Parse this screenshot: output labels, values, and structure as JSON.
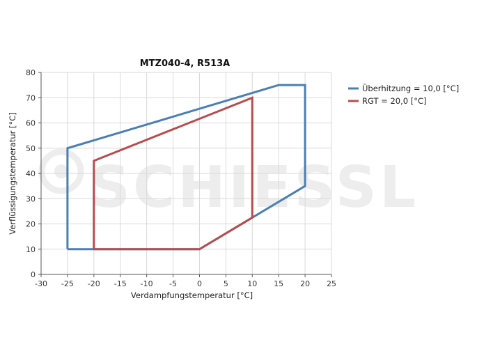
{
  "chart_data": {
    "type": "line",
    "title": "MTZ040-4, R513A",
    "xlabel": "Verdampfungstemperatur [°C]",
    "ylabel": "Verflüssigungstemperatur [°C]",
    "xlim": [
      -30,
      25
    ],
    "ylim": [
      0,
      80
    ],
    "x_ticks": [
      -30,
      -25,
      -20,
      -15,
      -10,
      -5,
      0,
      5,
      10,
      15,
      20,
      25
    ],
    "y_ticks": [
      0,
      10,
      20,
      30,
      40,
      50,
      60,
      70,
      80
    ],
    "grid": true,
    "legend_position": "right",
    "series": [
      {
        "name": "Überhitzung = 10,0 [°C]",
        "color": "#4a7fb5",
        "points": [
          {
            "x": -25,
            "y": 10
          },
          {
            "x": -25,
            "y": 50
          },
          {
            "x": 15,
            "y": 75
          },
          {
            "x": 20,
            "y": 75
          },
          {
            "x": 20,
            "y": 35
          },
          {
            "x": 10,
            "y": 22.5
          },
          {
            "x": 0,
            "y": 10
          },
          {
            "x": -25,
            "y": 10
          }
        ]
      },
      {
        "name": "RGT = 20,0 [°C]",
        "color": "#b84c4c",
        "points": [
          {
            "x": -20,
            "y": 10
          },
          {
            "x": -20,
            "y": 45
          },
          {
            "x": 10,
            "y": 70
          },
          {
            "x": 10,
            "y": 22.5
          },
          {
            "x": 0,
            "y": 10
          },
          {
            "x": -20,
            "y": 10
          }
        ]
      }
    ]
  },
  "watermark": {
    "text": "SCHIESSL",
    "icon": "schiessl-logo-icon"
  }
}
